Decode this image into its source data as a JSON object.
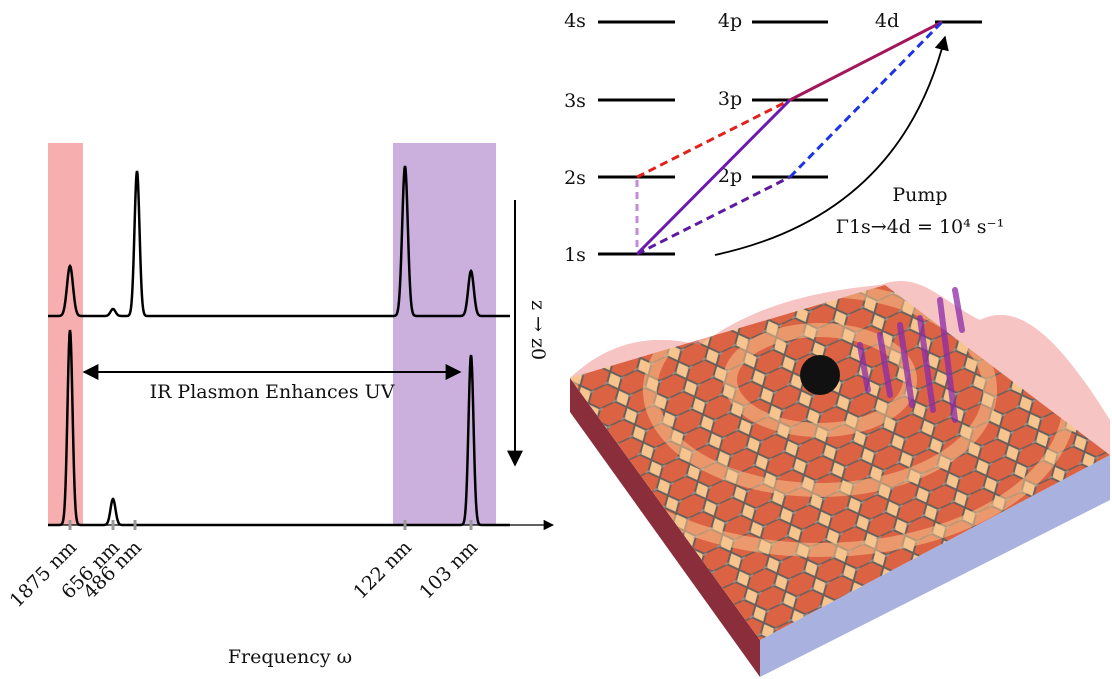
{
  "levels": {
    "4s": "4s",
    "4p": "4p",
    "4d": "4d",
    "3s": "3s",
    "3p": "3p",
    "2s": "2s",
    "2p": "2p",
    "1s": "1s"
  },
  "pump": {
    "label": "Pump",
    "rate": "Γ1s→4d = 10⁴ s⁻¹"
  },
  "spectrum": {
    "wavelength_labels": [
      "1875 nm",
      "656 nm",
      "486 nm",
      "122 nm",
      "103 nm"
    ],
    "annotation": "IR Plasmon Enhances UV",
    "axis_label": "Frequency ω",
    "propagation_label": "z → z0"
  }
}
